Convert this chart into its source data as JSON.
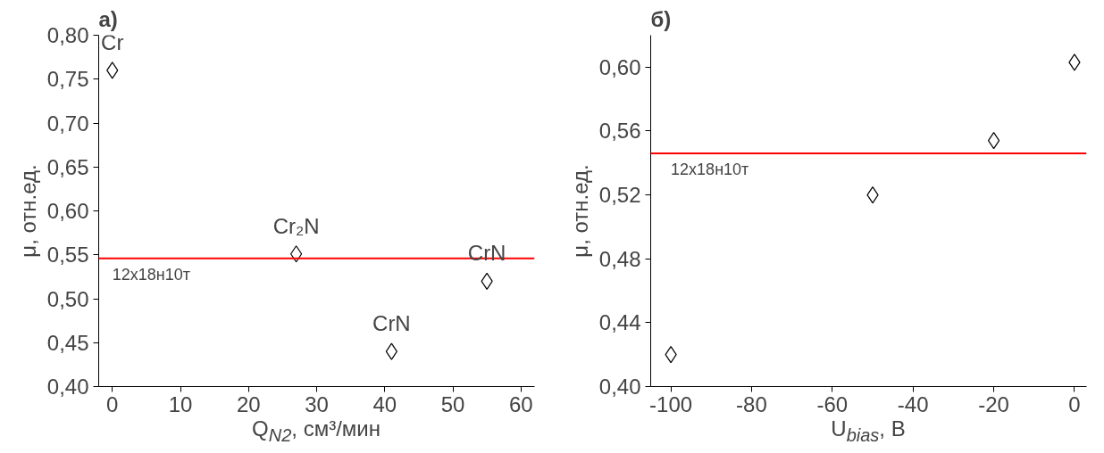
{
  "chart_data": [
    {
      "type": "scatter",
      "title": "а)",
      "xlabel": "Q$_{N2}$, см³/мин",
      "ylabel": "μ, отн.ед.",
      "x": [
        0,
        27,
        41,
        55
      ],
      "series": [
        {
          "color": "#000000",
          "values": [
            0.76,
            0.551,
            0.44,
            0.52
          ]
        }
      ],
      "marker": "diamond",
      "grid": false,
      "xlim": [
        -2,
        62
      ],
      "xticks": [
        0,
        10,
        20,
        30,
        40,
        50,
        60
      ],
      "ylim": [
        0.4,
        0.8
      ],
      "yticks": [
        {
          "value": 0.4,
          "label": "0,40"
        },
        {
          "value": 0.45,
          "label": "0,45"
        },
        {
          "value": 0.5,
          "label": "0,50"
        },
        {
          "value": 0.55,
          "label": "0,55"
        },
        {
          "value": 0.6,
          "label": "0,60"
        },
        {
          "value": 0.65,
          "label": "0,65"
        },
        {
          "value": 0.7,
          "label": "0,70"
        },
        {
          "value": 0.75,
          "label": "0,75"
        },
        {
          "value": 0.8,
          "label": "0,80"
        }
      ],
      "ref_lines": [
        {
          "axis": "y",
          "value": 0.546,
          "label": "12х18н10т",
          "color": "#ff0000"
        }
      ],
      "annotations": [
        {
          "text": "Cr",
          "x": 0,
          "y": 0.76
        },
        {
          "text": "Cr₂N",
          "x": 27,
          "y": 0.551
        },
        {
          "text": "CrN",
          "x": 41,
          "y": 0.44
        },
        {
          "text": "CrN",
          "x": 55,
          "y": 0.52
        }
      ]
    },
    {
      "type": "scatter",
      "title": "б)",
      "xlabel": "U$_{bias}$, В",
      "ylabel": "μ, отн.ед.",
      "x": [
        -100,
        -50,
        -20,
        0
      ],
      "series": [
        {
          "color": "#000000",
          "values": [
            0.42,
            0.52,
            0.554,
            0.603
          ]
        }
      ],
      "marker": "diamond",
      "grid": false,
      "xlim": [
        -105,
        3
      ],
      "xticks": [
        -100,
        -80,
        -60,
        -40,
        -20,
        0
      ],
      "ylim": [
        0.4,
        0.62
      ],
      "yticks": [
        {
          "value": 0.4,
          "label": "0,40"
        },
        {
          "value": 0.44,
          "label": "0,44"
        },
        {
          "value": 0.48,
          "label": "0,48"
        },
        {
          "value": 0.52,
          "label": "0,52"
        },
        {
          "value": 0.56,
          "label": "0,56"
        },
        {
          "value": 0.6,
          "label": "0,60"
        }
      ],
      "ref_lines": [
        {
          "axis": "y",
          "value": 0.546,
          "label": "12х18н10т",
          "color": "#ff0000"
        }
      ]
    }
  ]
}
